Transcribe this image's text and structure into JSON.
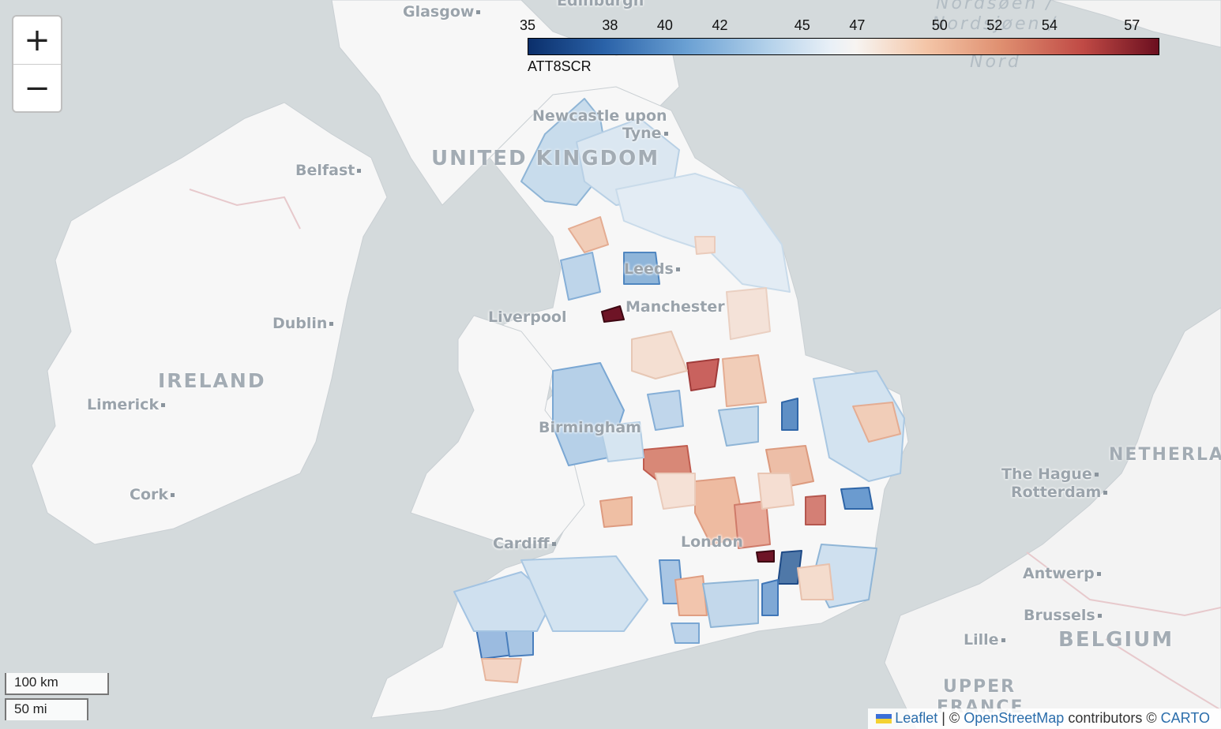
{
  "zoom": {
    "in_label": "+",
    "out_label": "−"
  },
  "legend": {
    "ticks": [
      "35",
      "38",
      "40",
      "42",
      "45",
      "47",
      "50",
      "52",
      "54",
      "57"
    ],
    "caption": "ATT8SCR",
    "min": 35,
    "max": 58,
    "colors": {
      "low": "#0b2f6b",
      "mid": "#f7f4f1",
      "high": "#6b0f1f"
    }
  },
  "places": {
    "glasgow": "Glasgow",
    "edinburgh": "Edinburgh",
    "newcastle": "Newcastle upon",
    "tyne": "Tyne",
    "belfast": "Belfast",
    "leeds": "Leeds",
    "liverpool": "Liverpool",
    "manchester": "Manchester",
    "dublin": "Dublin",
    "limerick": "Limerick",
    "birmingham": "Birmingham",
    "cork": "Cork",
    "cardiff": "Cardiff",
    "london": "London",
    "the_hague": "The Hague",
    "rotterdam": "Rotterdam",
    "antwerp": "Antwerp",
    "brussels": "Brussels",
    "lille": "Lille"
  },
  "countries": {
    "uk": "UNITED KINGDOM",
    "ireland": "IRELAND",
    "netherlands": "NETHERLA",
    "belgium": "BELGIUM",
    "upper_france": "UPPER",
    "upper_france2": "FRANCE"
  },
  "seas": {
    "line1": "Nordsøen /",
    "line2": "Nordsjøen /",
    "line3": "Nord"
  },
  "scale": {
    "km": "100 km",
    "mi": "50 mi"
  },
  "attribution": {
    "leaflet": "Leaflet",
    "sep1": "| ©",
    "osm": "OpenStreetMap",
    "mid": "contributors ©",
    "carto": "CARTO"
  }
}
